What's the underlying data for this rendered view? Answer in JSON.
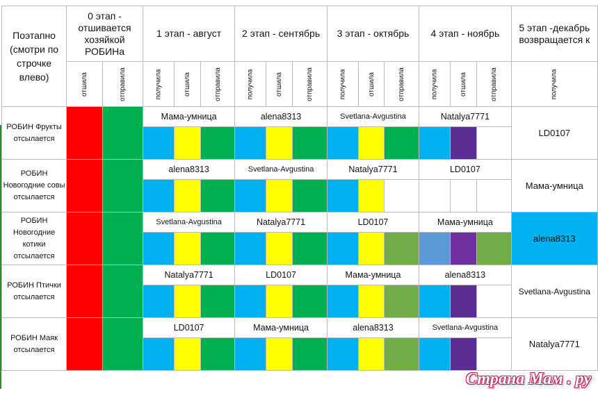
{
  "header": {
    "first_col": "Поэтапно (смотри по строчке влево)",
    "stages": [
      "0 этап - отшивается хозяйкой РОБИНа",
      "1 этап - август",
      "2 этап - сентябрь",
      "3 этап - октябрь",
      "4 этап - ноябрь",
      "5 этап -декабрь возвращается к"
    ],
    "subheaders": {
      "stage0": [
        "отшила",
        "отправила"
      ],
      "stage1_4": [
        "получила",
        "отшила",
        "отправила"
      ],
      "stage5": [
        "получила"
      ]
    }
  },
  "colors": {
    "red": "#ff0000",
    "green": "#00b050",
    "blue": "#00b0f0",
    "yellow": "#ffff00",
    "olive": "#70ad47",
    "purple": "#5c2d91",
    "violet": "#7030a0",
    "steel": "#5b9bd5",
    "white": "#ffffff"
  },
  "rows": [
    {
      "label": "РОБИН Фрукты отсылается",
      "names": [
        "Мама-умница",
        "alena8313",
        "Svetlana-Avgustina",
        "Natalya7771"
      ],
      "final": "LD0107",
      "final_bg": "white",
      "cells": [
        "blue",
        "yellow",
        "green",
        "blue",
        "yellow",
        "green",
        "blue",
        "yellow",
        "green",
        "blue",
        "purple",
        "white"
      ]
    },
    {
      "label": "РОБИН Новогодние совы отсылается",
      "names": [
        "alena8313",
        "Svetlana-Avgustina",
        "Natalya7771",
        "LD0107"
      ],
      "final": "Мама-умница",
      "final_bg": "white",
      "cells": [
        "blue",
        "yellow",
        "green",
        "blue",
        "yellow",
        "green",
        "blue",
        "yellow",
        "white",
        "white",
        "white",
        "white"
      ]
    },
    {
      "label": "РОБИН Новогодние котики отсылается",
      "names": [
        "Svetlana-Avgustina",
        "Natalya7771",
        "LD0107",
        "Мама-умница"
      ],
      "final": "alena8313",
      "final_bg": "blue",
      "cells": [
        "blue",
        "yellow",
        "green",
        "blue",
        "yellow",
        "green",
        "blue",
        "yellow",
        "olive",
        "steel",
        "violet",
        "olive"
      ]
    },
    {
      "label": "РОБИН Птички отсылается",
      "names": [
        "Natalya7771",
        "LD0107",
        "Мама-умница",
        "alena8313"
      ],
      "final": "Svetlana-Avgustina",
      "final_bg": "white",
      "cells": [
        "blue",
        "yellow",
        "green",
        "blue",
        "yellow",
        "green",
        "blue",
        "yellow",
        "olive",
        "blue",
        "purple",
        "white"
      ]
    },
    {
      "label": "РОБИН Маяк отсылается",
      "names": [
        "LD0107",
        "Мама-умница",
        "alena8313",
        "Svetlana-Avgustina"
      ],
      "final": "Natalya7771",
      "final_bg": "white",
      "cells": [
        "blue",
        "yellow",
        "green",
        "blue",
        "yellow",
        "green",
        "blue",
        "yellow",
        "olive",
        "blue",
        "purple",
        "white"
      ]
    }
  ],
  "watermark": "Страна Мам . ру"
}
